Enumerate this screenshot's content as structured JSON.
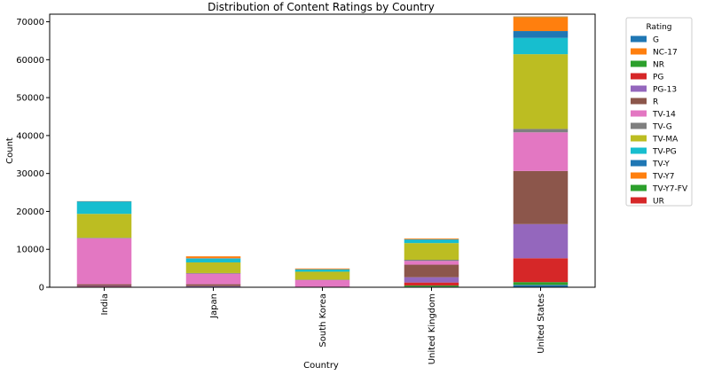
{
  "chart_data": {
    "type": "bar",
    "stacked": true,
    "title": "Distribution of Content Ratings by Country",
    "xlabel": "Country",
    "ylabel": "Count",
    "ylim": [
      0,
      72000
    ],
    "yticks": [
      0,
      10000,
      20000,
      30000,
      40000,
      50000,
      60000,
      70000
    ],
    "grid": false,
    "legend_title": "Rating",
    "legend_position": "outside-top-right",
    "categories": [
      "India",
      "Japan",
      "South Korea",
      "United Kingdom",
      "United States"
    ],
    "series": [
      {
        "name": "G",
        "color": "#1f77b4",
        "values": [
          0,
          0,
          0,
          150,
          600
        ]
      },
      {
        "name": "NC-17",
        "color": "#ff7f0e",
        "values": [
          0,
          0,
          0,
          0,
          50
        ]
      },
      {
        "name": "NR",
        "color": "#2ca02c",
        "values": [
          100,
          0,
          0,
          300,
          700
        ]
      },
      {
        "name": "PG",
        "color": "#d62728",
        "values": [
          100,
          0,
          0,
          800,
          6300
        ]
      },
      {
        "name": "PG-13",
        "color": "#9467bd",
        "values": [
          150,
          300,
          0,
          1400,
          9000
        ]
      },
      {
        "name": "R",
        "color": "#8c564b",
        "values": [
          450,
          500,
          0,
          3300,
          14000
        ]
      },
      {
        "name": "TV-14",
        "color": "#e377c2",
        "values": [
          12100,
          2800,
          1900,
          1000,
          10200
        ]
      },
      {
        "name": "TV-G",
        "color": "#7f7f7f",
        "values": [
          150,
          150,
          100,
          300,
          900
        ]
      },
      {
        "name": "TV-MA",
        "color": "#bcbd22",
        "values": [
          6300,
          2800,
          2100,
          4400,
          19700
        ]
      },
      {
        "name": "TV-PG",
        "color": "#17becf",
        "values": [
          3200,
          1000,
          600,
          900,
          4300
        ]
      },
      {
        "name": "TV-Y",
        "color": "#1f77b4",
        "values": [
          100,
          100,
          50,
          100,
          1800
        ]
      },
      {
        "name": "TV-Y7",
        "color": "#ff7f0e",
        "values": [
          50,
          500,
          200,
          200,
          3700
        ]
      },
      {
        "name": "TV-Y7-FV",
        "color": "#2ca02c",
        "values": [
          0,
          0,
          0,
          0,
          100
        ]
      },
      {
        "name": "UR",
        "color": "#d62728",
        "values": [
          0,
          0,
          0,
          0,
          50
        ]
      }
    ]
  }
}
